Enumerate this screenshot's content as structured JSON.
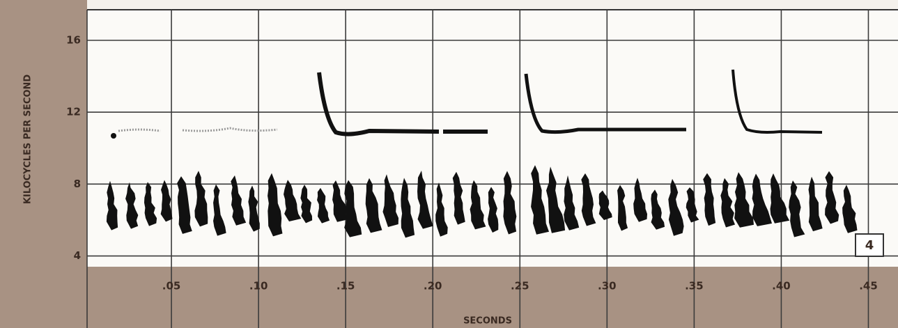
{
  "chart_data": {
    "type": "spectrogram",
    "x_label": "SECONDS",
    "y_label": "KILOCYCLES PER SECOND",
    "panel_label": "4",
    "xlim": [
      0,
      0.467
    ],
    "ylim": [
      3.4,
      17.7
    ],
    "xticks": [
      {
        "value": 0.05,
        "label": ".05"
      },
      {
        "value": 0.1,
        "label": ".10"
      },
      {
        "value": 0.15,
        "label": ".15"
      },
      {
        "value": 0.2,
        "label": ".20"
      },
      {
        "value": 0.25,
        "label": ".25"
      },
      {
        "value": 0.3,
        "label": ".30"
      },
      {
        "value": 0.35,
        "label": ".35"
      },
      {
        "value": 0.4,
        "label": ".40"
      },
      {
        "value": 0.45,
        "label": ".45"
      }
    ],
    "yticks": [
      4,
      8,
      12,
      16
    ],
    "grid": true
  }
}
